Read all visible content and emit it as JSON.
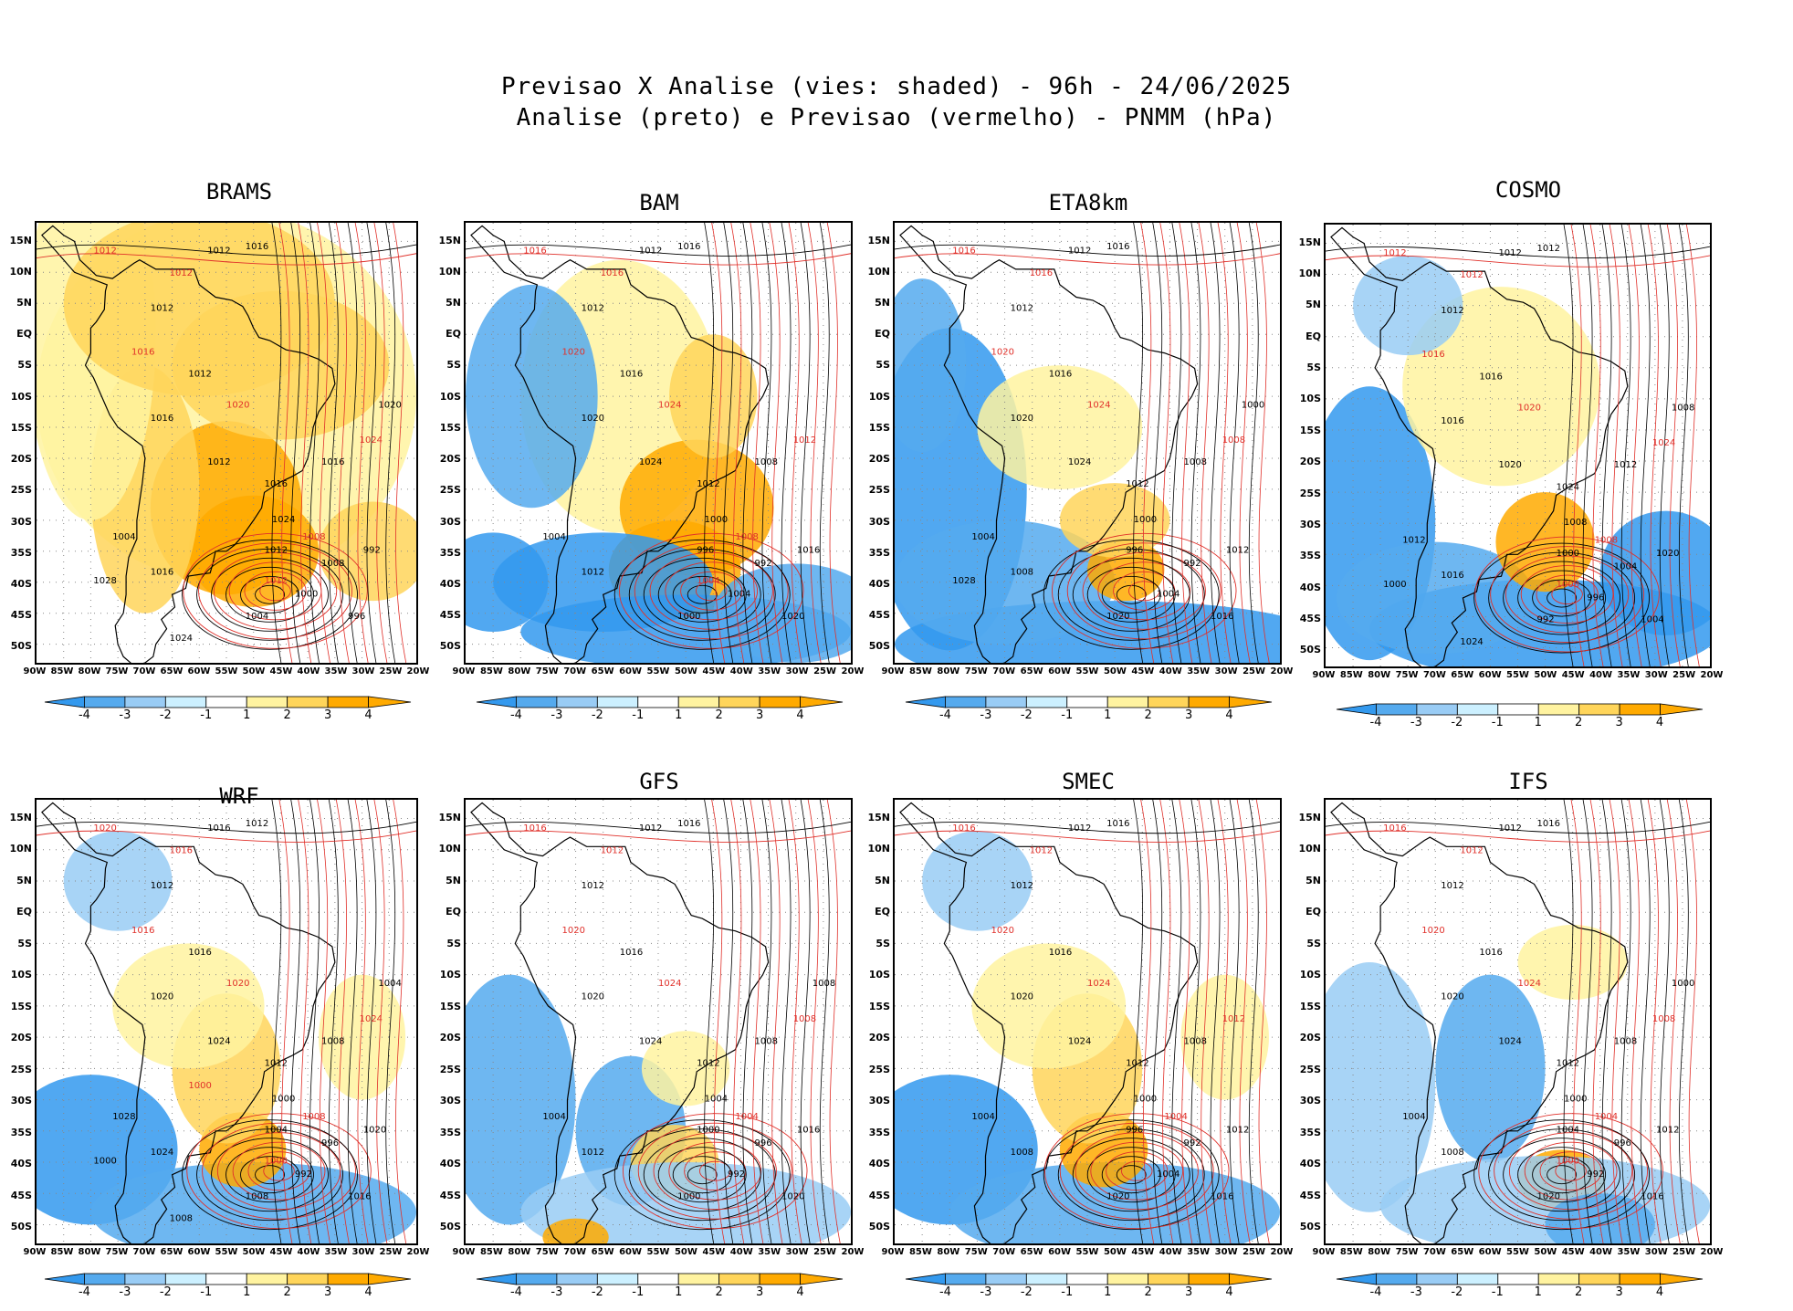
{
  "title": {
    "line1": "Previsao X Analise (vies: shaded) - 96h - 24/06/2025",
    "line2": "Analise (preto) e Previsao (vermelho) - PNMM (hPa)"
  },
  "lat_labels": [
    "15N",
    "10N",
    "5N",
    "EQ",
    "5S",
    "10S",
    "15S",
    "20S",
    "25S",
    "30S",
    "35S",
    "40S",
    "45S",
    "50S"
  ],
  "lon_labels": [
    "90W",
    "85W",
    "80W",
    "75W",
    "70W",
    "65W",
    "60W",
    "55W",
    "50W",
    "45W",
    "40W",
    "35W",
    "30W",
    "25W",
    "20W"
  ],
  "colorbar": {
    "labels": [
      "-4",
      "-3",
      "-2",
      "-1",
      "1",
      "2",
      "3",
      "4"
    ],
    "colors": [
      "#3399ee",
      "#55aaee",
      "#99ccf5",
      "#ccf0ff",
      "#ffffff",
      "#fff3a0",
      "#ffd55a",
      "#ffaa00"
    ]
  },
  "colors": {
    "analysis": "#000000",
    "forecast": "#e0302a",
    "coast": "#000000"
  },
  "panels": [
    {
      "name": "BRAMS",
      "bias": "warm-strong",
      "isobars_analysis": [
        "1016",
        "1012",
        "1012",
        "1012",
        "1016",
        "1012",
        "1016",
        "1016",
        "1024",
        "1012",
        "1008",
        "1000",
        "1004",
        "996",
        "992",
        "1016",
        "1004",
        "1020",
        "1028",
        "1024"
      ],
      "isobars_forecast": [
        "1012",
        "1012",
        "1016",
        "1020",
        "1024",
        "1008",
        "1012"
      ]
    },
    {
      "name": "BAM",
      "bias": "warm-south",
      "isobars_analysis": [
        "1016",
        "1012",
        "1012",
        "1016",
        "1020",
        "1024",
        "1012",
        "1008",
        "1000",
        "996",
        "992",
        "1004",
        "1000",
        "1020",
        "1016",
        "1012",
        "1004"
      ],
      "isobars_forecast": [
        "1016",
        "1016",
        "1020",
        "1024",
        "1012",
        "1008",
        "1004"
      ]
    },
    {
      "name": "ETA8km",
      "bias": "cold",
      "isobars_analysis": [
        "1016",
        "1012",
        "1012",
        "1016",
        "1020",
        "1024",
        "1012",
        "1008",
        "1000",
        "996",
        "992",
        "1004",
        "1020",
        "1016",
        "1012",
        "1008",
        "1004",
        "1000",
        "1028"
      ],
      "isobars_forecast": [
        "1016",
        "1016",
        "1020",
        "1024",
        "1008"
      ]
    },
    {
      "name": "COSMO",
      "bias": "cold-warm-south",
      "isobars_analysis": [
        "1012",
        "1012",
        "1012",
        "1016",
        "1016",
        "1020",
        "1024",
        "1012",
        "1008",
        "1000",
        "1004",
        "996",
        "992",
        "1004",
        "1020",
        "1016",
        "1012",
        "1008",
        "1000",
        "1024"
      ],
      "isobars_forecast": [
        "1012",
        "1012",
        "1016",
        "1020",
        "1024",
        "1008",
        "1008"
      ]
    },
    {
      "name": "WRF",
      "bias": "mixed",
      "isobars_analysis": [
        "1012",
        "1016",
        "1012",
        "1016",
        "1020",
        "1024",
        "1012",
        "1008",
        "1000",
        "1004",
        "996",
        "992",
        "1008",
        "1016",
        "1020",
        "1024",
        "1028",
        "1004",
        "1000",
        "1008"
      ],
      "isobars_forecast": [
        "1020",
        "1016",
        "1016",
        "1020",
        "1024",
        "1008",
        "1008",
        "1000"
      ]
    },
    {
      "name": "GFS",
      "bias": "slight",
      "isobars_analysis": [
        "1016",
        "1012",
        "1012",
        "1016",
        "1020",
        "1024",
        "1012",
        "1008",
        "1004",
        "1000",
        "996",
        "992",
        "1000",
        "1020",
        "1016",
        "1012",
        "1004",
        "1008"
      ],
      "isobars_forecast": [
        "1016",
        "1012",
        "1020",
        "1024",
        "1008",
        "1004"
      ]
    },
    {
      "name": "SMEC",
      "bias": "mixed",
      "isobars_analysis": [
        "1016",
        "1012",
        "1012",
        "1016",
        "1020",
        "1024",
        "1012",
        "1008",
        "1000",
        "996",
        "992",
        "1004",
        "1020",
        "1016",
        "1012",
        "1008",
        "1004"
      ],
      "isobars_forecast": [
        "1016",
        "1012",
        "1020",
        "1024",
        "1012",
        "1004"
      ]
    },
    {
      "name": "IFS",
      "bias": "slight-cold",
      "isobars_analysis": [
        "1016",
        "1012",
        "1012",
        "1016",
        "1020",
        "1024",
        "1012",
        "1008",
        "1000",
        "1004",
        "996",
        "992",
        "1020",
        "1016",
        "1012",
        "1008",
        "1004",
        "1000"
      ],
      "isobars_forecast": [
        "1016",
        "1012",
        "1020",
        "1024",
        "1008",
        "1004",
        "1000"
      ]
    }
  ]
}
